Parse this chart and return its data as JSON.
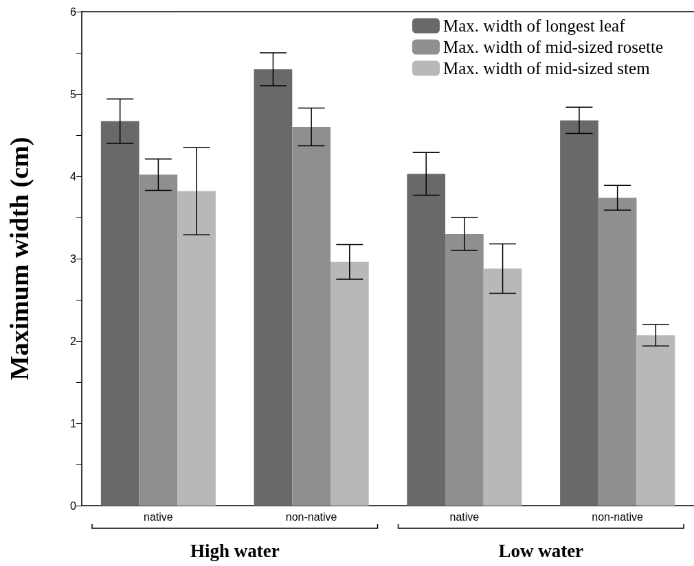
{
  "chart_data": {
    "type": "bar",
    "ylabel": "Maximum width (cm)",
    "categories": [
      "native",
      "non-native",
      "native",
      "non-native"
    ],
    "series": [
      {
        "name": "Max. width of longest leaf",
        "color": "#696969",
        "values": [
          4.67,
          5.3,
          4.03,
          4.68
        ],
        "errors": [
          0.27,
          0.2,
          0.26,
          0.16
        ]
      },
      {
        "name": "Max. width of mid-sized rosette",
        "color": "#8f8f8f",
        "values": [
          4.02,
          4.6,
          3.3,
          3.74
        ],
        "errors": [
          0.19,
          0.23,
          0.2,
          0.15
        ]
      },
      {
        "name": "Max. width of mid-sized stem",
        "color": "#b8b8b8",
        "values": [
          3.82,
          2.96,
          2.88,
          2.07
        ],
        "errors": [
          0.53,
          0.21,
          0.3,
          0.13
        ]
      }
    ],
    "annotations": [
      "High water",
      "Low water"
    ],
    "ylim": [
      0,
      6
    ],
    "yticks": [
      0,
      {
        "value": 0.5,
        "label": null
      },
      1,
      {
        "value": 1.5,
        "label": null
      },
      2,
      {
        "value": 2.5,
        "label": null
      },
      3,
      {
        "value": 3.5,
        "label": null
      },
      4,
      {
        "value": 4.5,
        "label": null
      },
      5,
      {
        "value": 5.5,
        "label": null
      },
      6
    ],
    "grid": false,
    "legend": "top right"
  }
}
